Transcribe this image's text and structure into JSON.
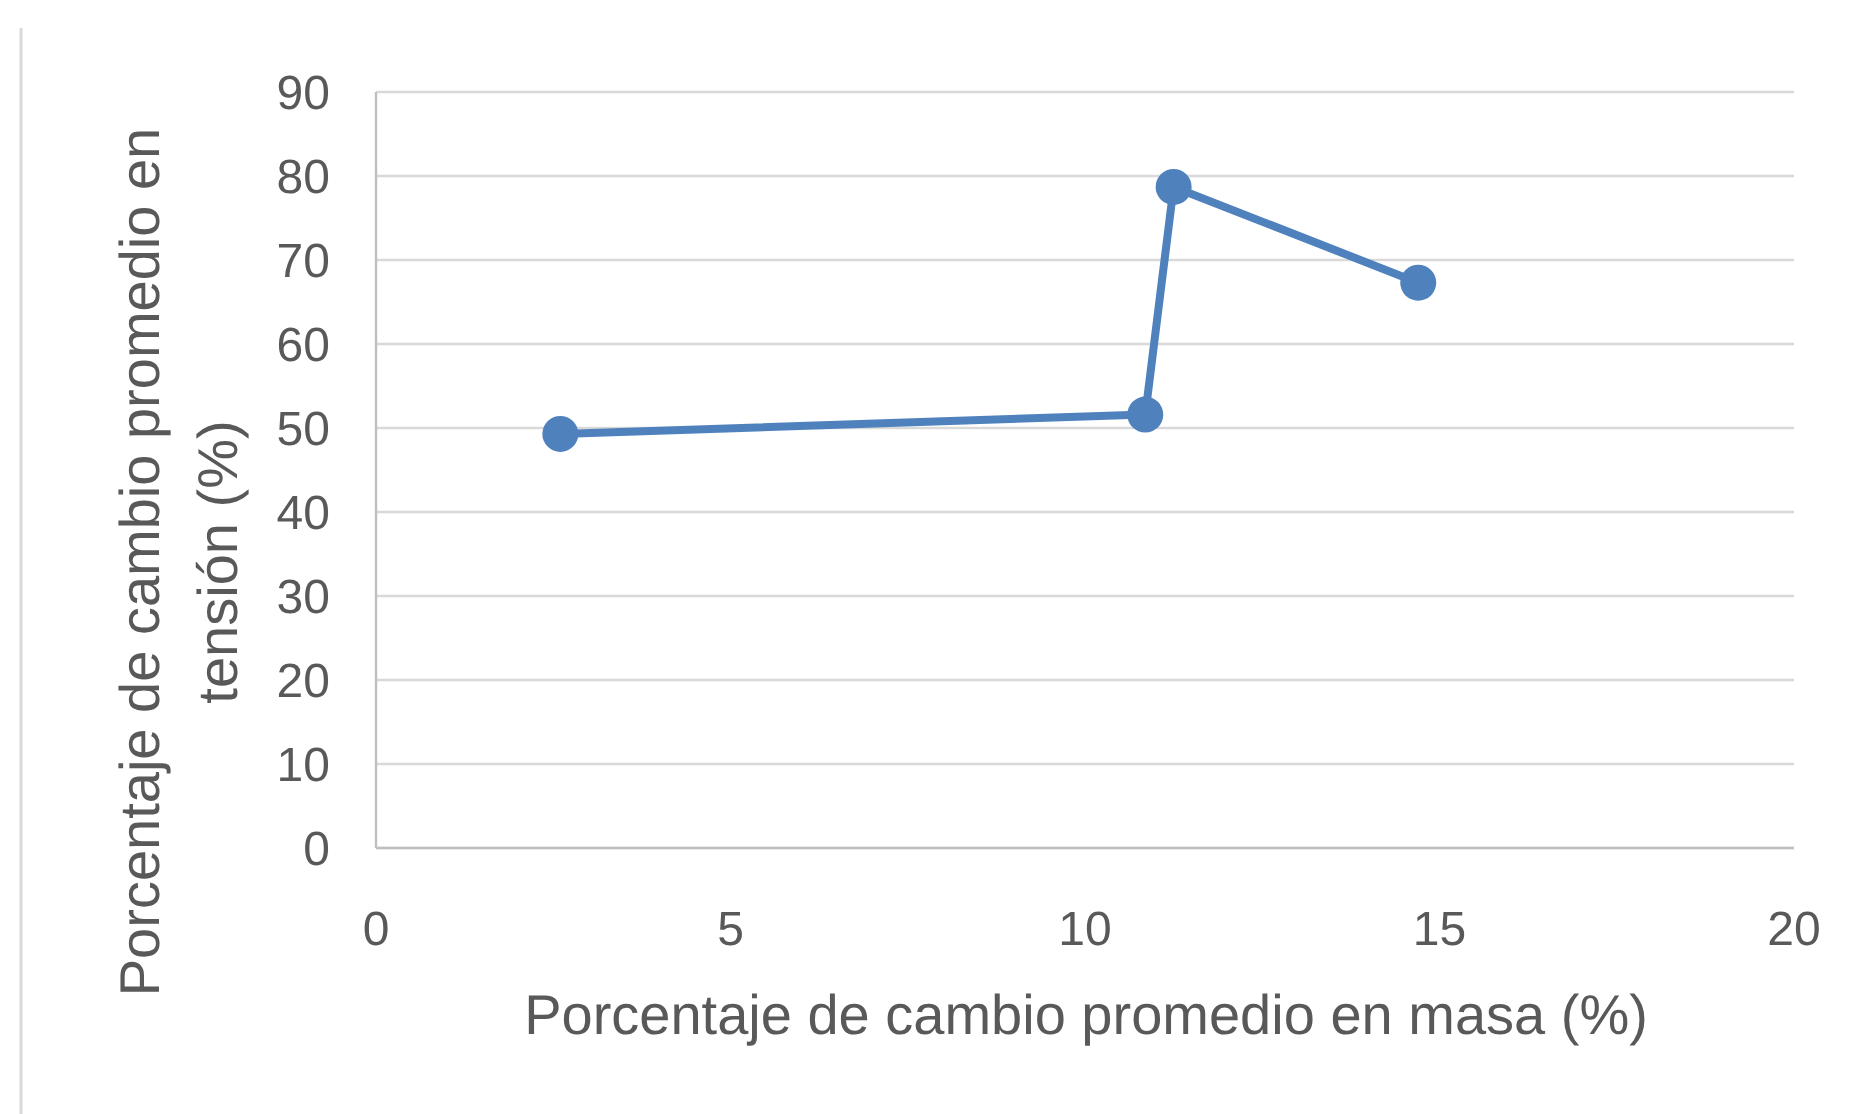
{
  "chart_data": {
    "type": "line",
    "xlabel": "Porcentaje de cambio promedio en masa (%)",
    "ylabel": "Porcentaje de cambio promedio en tensión (%)",
    "x": [
      2.6,
      10.85,
      11.25,
      14.7
    ],
    "series": [
      {
        "color": "#4f81bd",
        "values": [
          49.3,
          51.6,
          78.7,
          67.3
        ]
      }
    ],
    "xlim": [
      0,
      20
    ],
    "xticks": [
      0,
      5,
      10,
      15,
      20
    ],
    "ylim": [
      0,
      90
    ],
    "yticks": [
      0,
      10,
      20,
      30,
      40,
      50,
      60,
      70,
      80,
      90
    ],
    "grid": "y",
    "marker": "circle",
    "line_style": "solid"
  }
}
